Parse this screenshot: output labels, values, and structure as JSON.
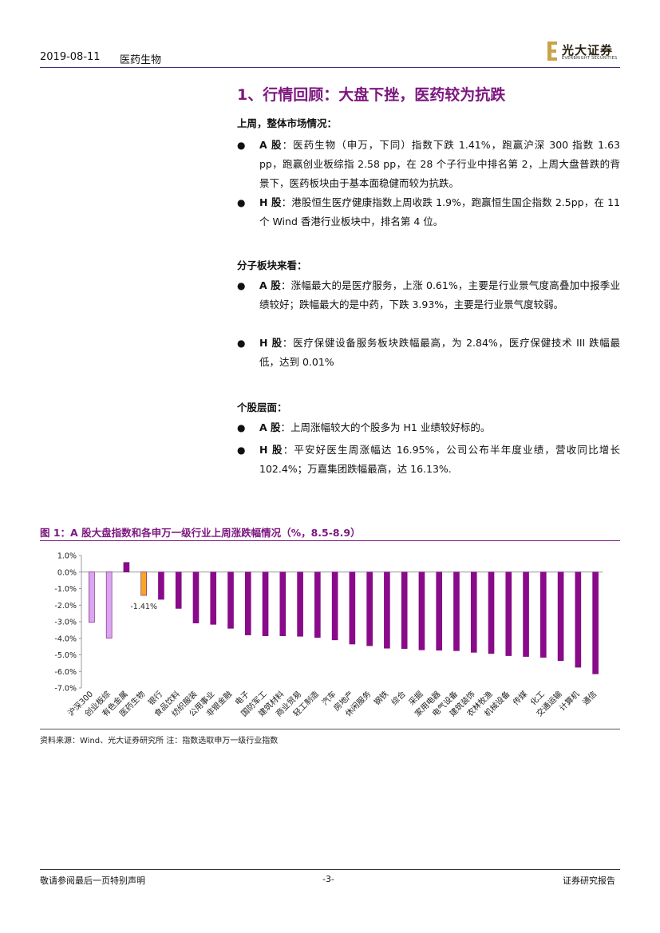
{
  "header": {
    "date": "2019-08-11",
    "sector": "医药生物"
  },
  "logo": {
    "name": "光大证券",
    "sub": "EVERBRIGHT SECURITIES"
  },
  "section_title": "1、行情回顾：大盘下挫，医药较为抗跌",
  "market": {
    "heading": "上周，整体市场情况：",
    "items": [
      {
        "label": "A 股",
        "text": "：医药生物（申万，下同）指数下跌 1.41%，跑赢沪深 300 指数 1.63 pp，跑赢创业板综指 2.58 pp，在 28 个子行业中排名第 2，上周大盘普跌的背景下，医药板块由于基本面稳健而较为抗跌。"
      },
      {
        "label": "H 股",
        "text": "：港股恒生医疗健康指数上周收跌 1.9%，跑赢恒生国企指数 2.5pp，在 11 个 Wind 香港行业板块中，排名第 4 位。"
      }
    ]
  },
  "subsector": {
    "heading": "分子板块来看：",
    "items": [
      {
        "label": "A 股",
        "text": "：涨幅最大的是医疗服务，上涨 0.61%，主要是行业景气度高叠加中报季业绩较好；跌幅最大的是中药，下跌 3.93%，主要是行业景气度较弱。"
      },
      {
        "label": "H 股",
        "text": "：医疗保健设备服务板块跌幅最高，为 2.84%，医疗保健技术 III 跌幅最低，达到 0.01%"
      }
    ]
  },
  "stocks": {
    "heading": "个股层面：",
    "items": [
      {
        "label": "A 股",
        "text": "：上周涨幅较大的个股多为 H1 业绩较好标的。"
      },
      {
        "label": "H 股",
        "text": "：平安好医生周涨幅达 16.95%，公司公布半年度业绩，营收同比增长 102.4%；万嘉集团跌幅最高，达 16.13%."
      }
    ]
  },
  "figure": {
    "title": "图 1：A 股大盘指数和各申万一级行业上周涨跌幅情况（%，8.5-8.9）",
    "source": "资料来源：Wind、光大证券研究所   注：指数选取申万一级行业指数"
  },
  "chart_data": {
    "type": "bar",
    "categories": [
      "沪深300",
      "创业板综",
      "有色金属",
      "医药生物",
      "银行",
      "食品饮料",
      "纺织服装",
      "公用事业",
      "非银金融",
      "电子",
      "国防军工",
      "建筑材料",
      "商业贸易",
      "轻工制造",
      "汽车",
      "房地产",
      "休闲服务",
      "钢铁",
      "综合",
      "采掘",
      "家用电器",
      "电气设备",
      "建筑装饰",
      "农林牧渔",
      "机械设备",
      "传媒",
      "化工",
      "交通运输",
      "计算机",
      "通信"
    ],
    "values": [
      -3.04,
      -3.99,
      0.58,
      -1.41,
      -1.65,
      -2.2,
      -3.08,
      -3.16,
      -3.4,
      -3.8,
      -3.85,
      -3.85,
      -3.88,
      -3.95,
      -4.1,
      -4.35,
      -4.45,
      -4.6,
      -4.62,
      -4.7,
      -4.72,
      -4.75,
      -4.85,
      -4.92,
      -5.05,
      -5.1,
      -5.15,
      -5.35,
      -5.75,
      -6.15
    ],
    "colors": [
      "#d9a6f0",
      "#d9a6f0",
      "#8b0a8b",
      "#f5a623",
      "#8b0a8b",
      "#8b0a8b",
      "#8b0a8b",
      "#8b0a8b",
      "#8b0a8b",
      "#8b0a8b",
      "#8b0a8b",
      "#8b0a8b",
      "#8b0a8b",
      "#8b0a8b",
      "#8b0a8b",
      "#8b0a8b",
      "#8b0a8b",
      "#8b0a8b",
      "#8b0a8b",
      "#8b0a8b",
      "#8b0a8b",
      "#8b0a8b",
      "#8b0a8b",
      "#8b0a8b",
      "#8b0a8b",
      "#8b0a8b",
      "#8b0a8b",
      "#8b0a8b",
      "#8b0a8b",
      "#8b0a8b"
    ],
    "ylim": [
      -7,
      1
    ],
    "yticks": [
      "1.0%",
      "0.0%",
      "-1.0%",
      "-2.0%",
      "-3.0%",
      "-4.0%",
      "-5.0%",
      "-6.0%",
      "-7.0%"
    ],
    "ytick_values": [
      1,
      0,
      -1,
      -2,
      -3,
      -4,
      -5,
      -6,
      -7
    ],
    "annotation": "-1.41%",
    "grid": false
  },
  "footer": {
    "left": "敬请参阅最后一页特别声明",
    "page": "-3-",
    "right": "证券研究报告"
  }
}
